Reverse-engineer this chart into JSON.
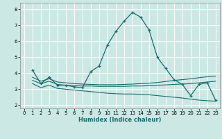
{
  "xlabel": "Humidex (Indice chaleur)",
  "background_color": "#cce8e4",
  "grid_color": "#ffffff",
  "line_color": "#1a6b6b",
  "x_ticks": [
    0,
    1,
    2,
    3,
    4,
    5,
    6,
    7,
    8,
    9,
    10,
    11,
    12,
    13,
    14,
    15,
    16,
    17,
    18,
    19,
    20,
    21,
    22,
    23
  ],
  "y_ticks": [
    2,
    3,
    4,
    5,
    6,
    7,
    8
  ],
  "ylim": [
    1.8,
    8.4
  ],
  "xlim": [
    -0.5,
    23.5
  ],
  "line1_x": [
    1,
    2,
    3,
    4,
    5,
    6,
    7,
    8,
    9,
    10,
    11,
    12,
    13,
    14,
    15,
    16,
    17,
    18,
    19,
    20,
    21,
    22,
    23
  ],
  "line1_y": [
    4.2,
    3.35,
    3.75,
    3.25,
    3.25,
    3.15,
    3.1,
    4.1,
    4.45,
    5.75,
    6.6,
    7.25,
    7.8,
    7.5,
    6.7,
    5.0,
    4.3,
    3.6,
    3.3,
    2.6,
    3.3,
    3.4,
    2.3
  ],
  "line2_x": [
    1,
    2,
    3,
    4,
    5,
    6,
    7,
    8,
    9,
    10,
    11,
    12,
    13,
    14,
    15,
    16,
    17,
    18,
    19,
    20,
    21,
    22,
    23
  ],
  "line2_y": [
    3.55,
    3.35,
    3.5,
    3.3,
    3.25,
    3.22,
    3.2,
    3.2,
    3.18,
    3.18,
    3.18,
    3.18,
    3.2,
    3.2,
    3.22,
    3.25,
    3.27,
    3.3,
    3.32,
    3.35,
    3.4,
    3.45,
    3.5
  ],
  "line3_x": [
    1,
    2,
    3,
    4,
    5,
    6,
    7,
    8,
    9,
    10,
    11,
    12,
    13,
    14,
    15,
    16,
    17,
    18,
    19,
    20,
    21,
    22,
    23
  ],
  "line3_y": [
    3.75,
    3.5,
    3.65,
    3.45,
    3.4,
    3.35,
    3.32,
    3.3,
    3.28,
    3.28,
    3.28,
    3.3,
    3.32,
    3.35,
    3.38,
    3.42,
    3.48,
    3.55,
    3.6,
    3.65,
    3.72,
    3.78,
    3.82
  ],
  "line4_x": [
    1,
    2,
    3,
    4,
    5,
    6,
    7,
    8,
    9,
    10,
    11,
    12,
    13,
    14,
    15,
    16,
    17,
    18,
    19,
    20,
    21,
    22,
    23
  ],
  "line4_y": [
    3.35,
    3.1,
    3.25,
    3.05,
    3.0,
    2.95,
    2.9,
    2.85,
    2.8,
    2.75,
    2.72,
    2.7,
    2.7,
    2.68,
    2.65,
    2.6,
    2.55,
    2.5,
    2.45,
    2.38,
    2.32,
    2.28,
    2.25
  ]
}
